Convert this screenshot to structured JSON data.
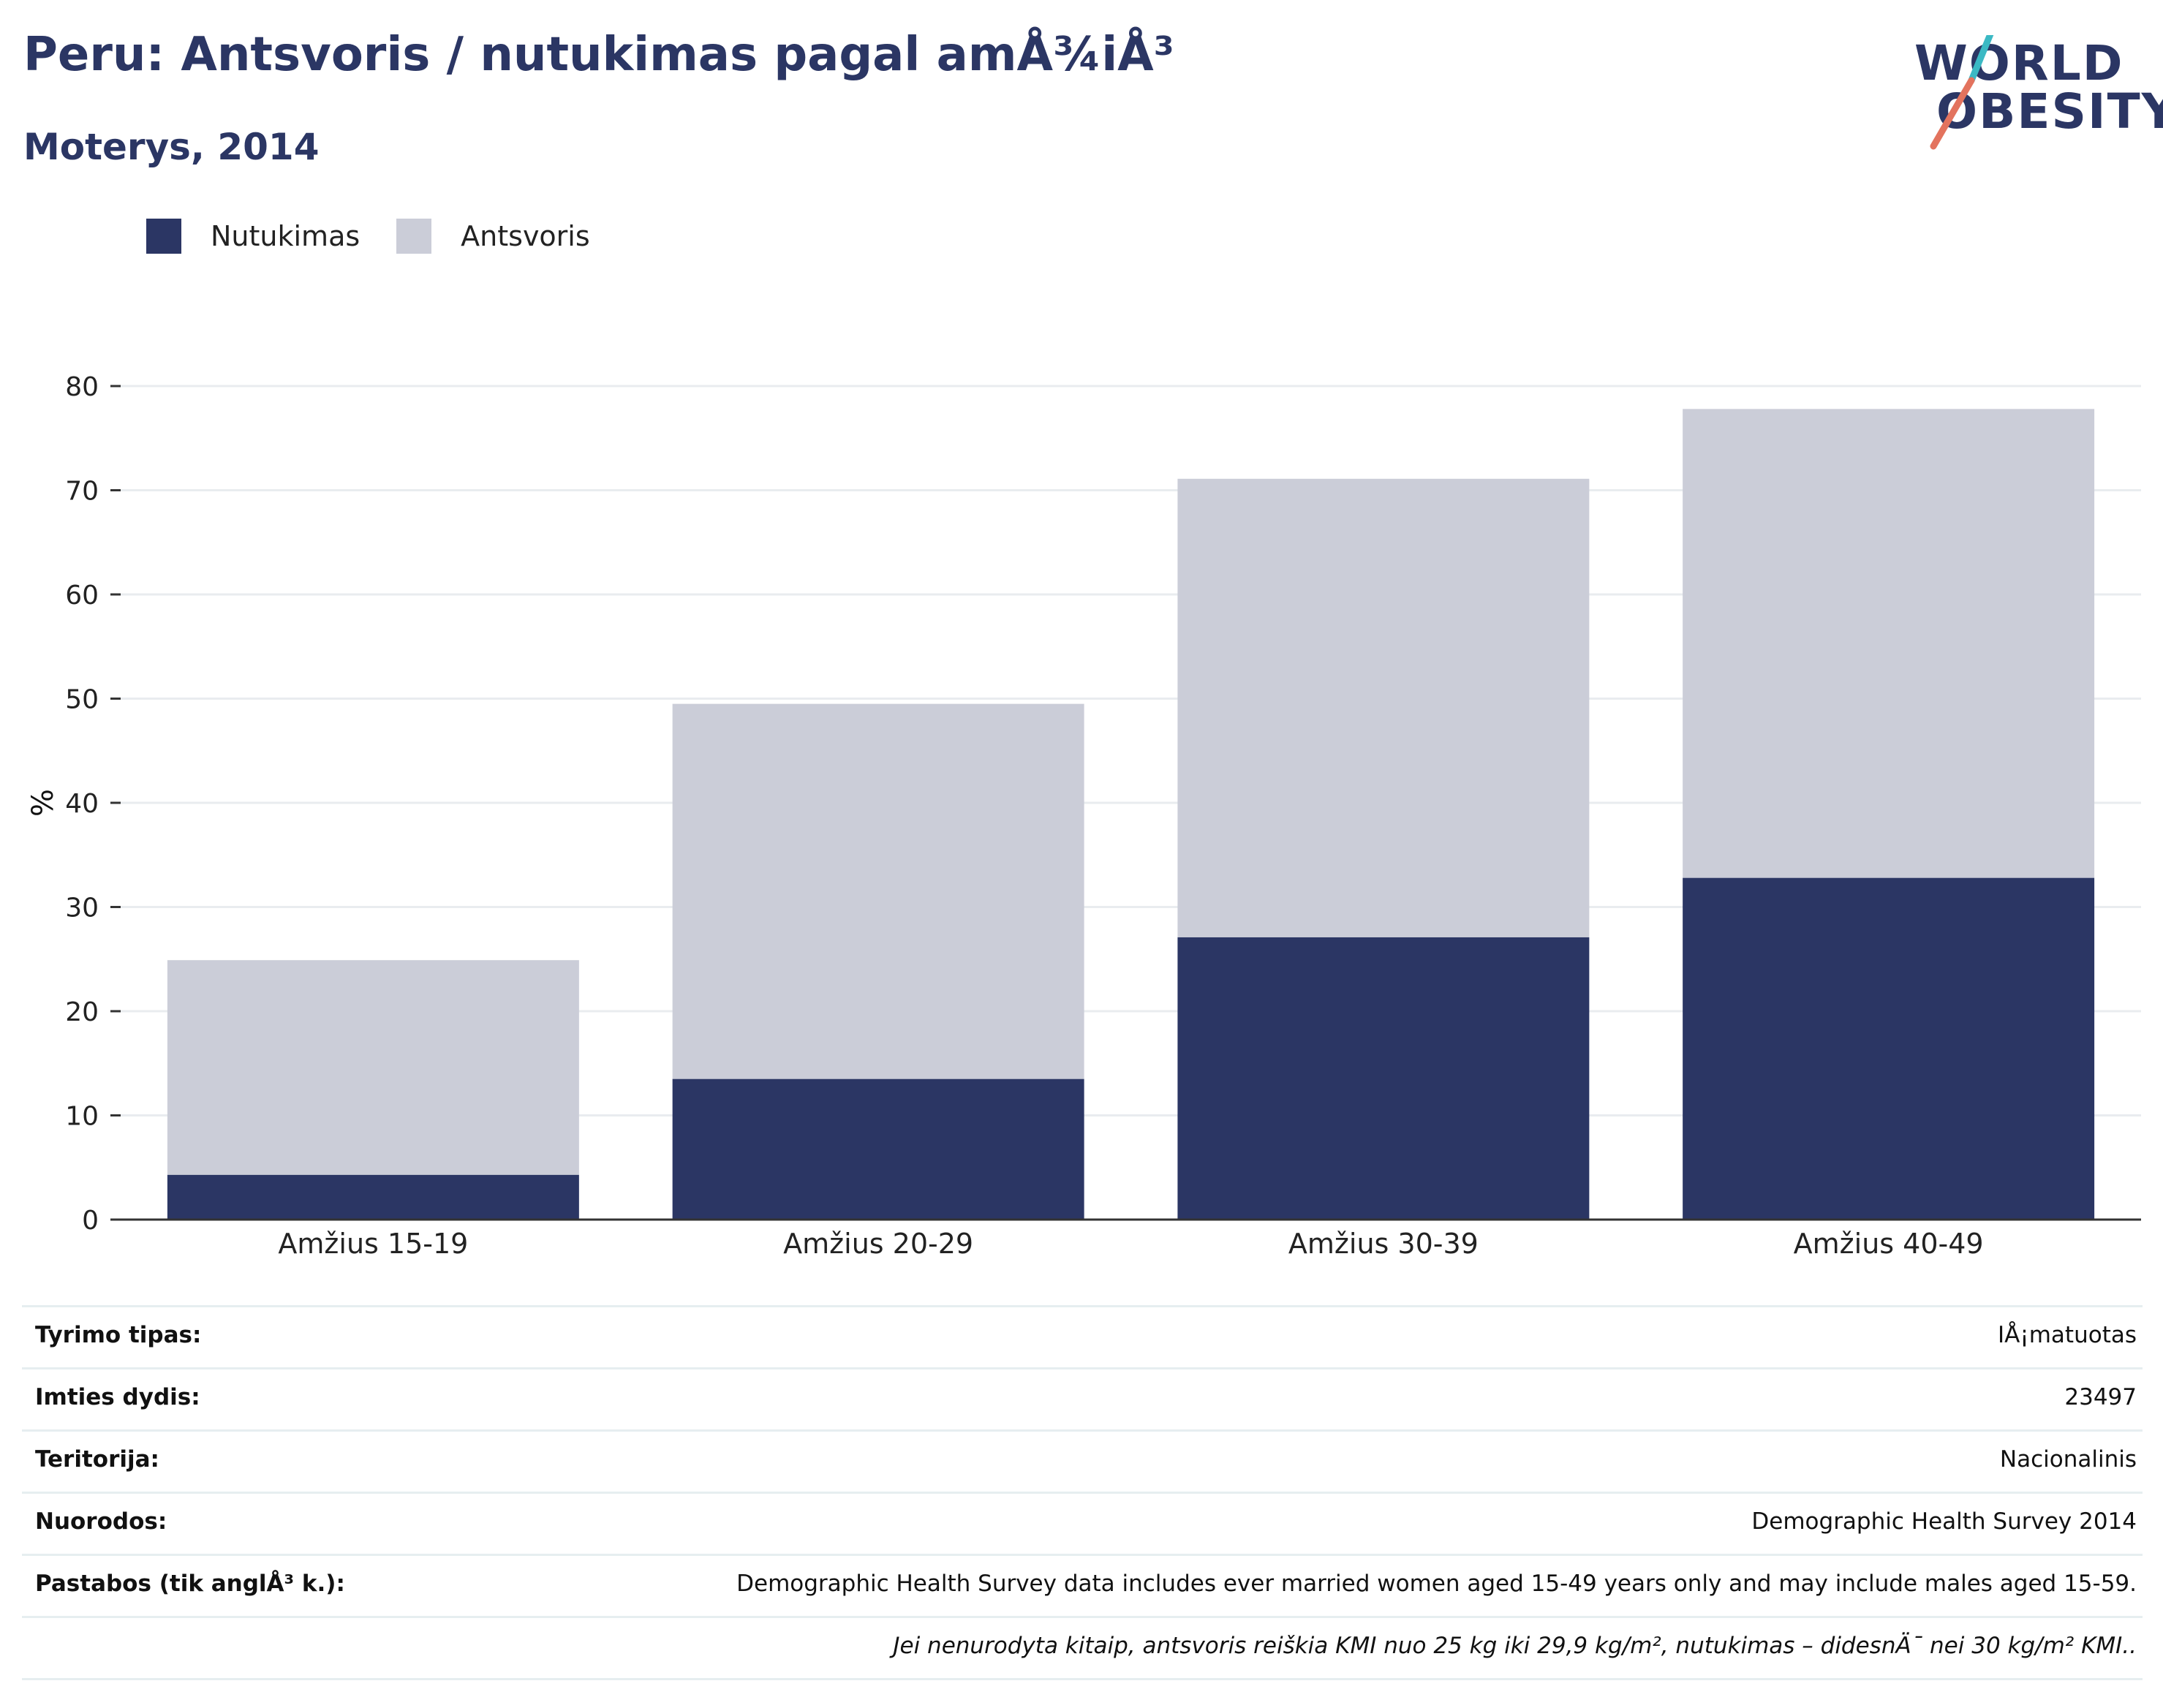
{
  "header": {
    "title": "Peru: Antsvoris / nutukimas pagal amÅ¾iÅ³",
    "subtitle": "Moterys, 2014"
  },
  "logo": {
    "line1": "WORLD",
    "line2": "OBESITY",
    "colors": {
      "text": "#2b3664",
      "slash_top": "#3bb9c4",
      "slash_bottom": "#e3735e"
    }
  },
  "legend": [
    {
      "label": "Nutukimas",
      "color": "#2b3664"
    },
    {
      "label": "Antsvoris",
      "color": "#cbcdd8"
    }
  ],
  "chart_data": {
    "type": "bar",
    "stacked": true,
    "categories": [
      "Amžius 15-19",
      "Amžius 20-29",
      "Amžius 30-39",
      "Amžius 40-49"
    ],
    "series": [
      {
        "name": "Nutukimas",
        "values": [
          4.3,
          13.5,
          27.1,
          32.8
        ],
        "color": "#2b3664"
      },
      {
        "name": "Antsvoris",
        "values": [
          20.6,
          36.0,
          44.0,
          45.0
        ],
        "color": "#cbcdd8"
      }
    ],
    "ylabel": "%",
    "ylim": [
      0,
      80
    ],
    "yticks": [
      "0",
      "10",
      "20",
      "30",
      "40",
      "50",
      "60",
      "70",
      "80"
    ],
    "grid": true,
    "legend_position": "top-left"
  },
  "meta": [
    {
      "key": "Tyrimo tipas:",
      "value": "IÅ¡matuotas"
    },
    {
      "key": "Imties dydis:",
      "value": "23497"
    },
    {
      "key": "Teritorija:",
      "value": "Nacionalinis"
    },
    {
      "key": "Nuorodos:",
      "value": "Demographic Health Survey 2014"
    },
    {
      "key": "Pastabos (tik anglÅ³ k.):",
      "value": "Demographic Health Survey data includes ever married women aged 15-49 years only and may include males aged 15-59."
    }
  ],
  "footnote": "Jei nenurodyta kitaip, antsvoris reiškia KMI nuo 25 kg iki 29,9 kg/m², nutukimas – didesnÄ¯ nei 30 kg/m² KMI.."
}
